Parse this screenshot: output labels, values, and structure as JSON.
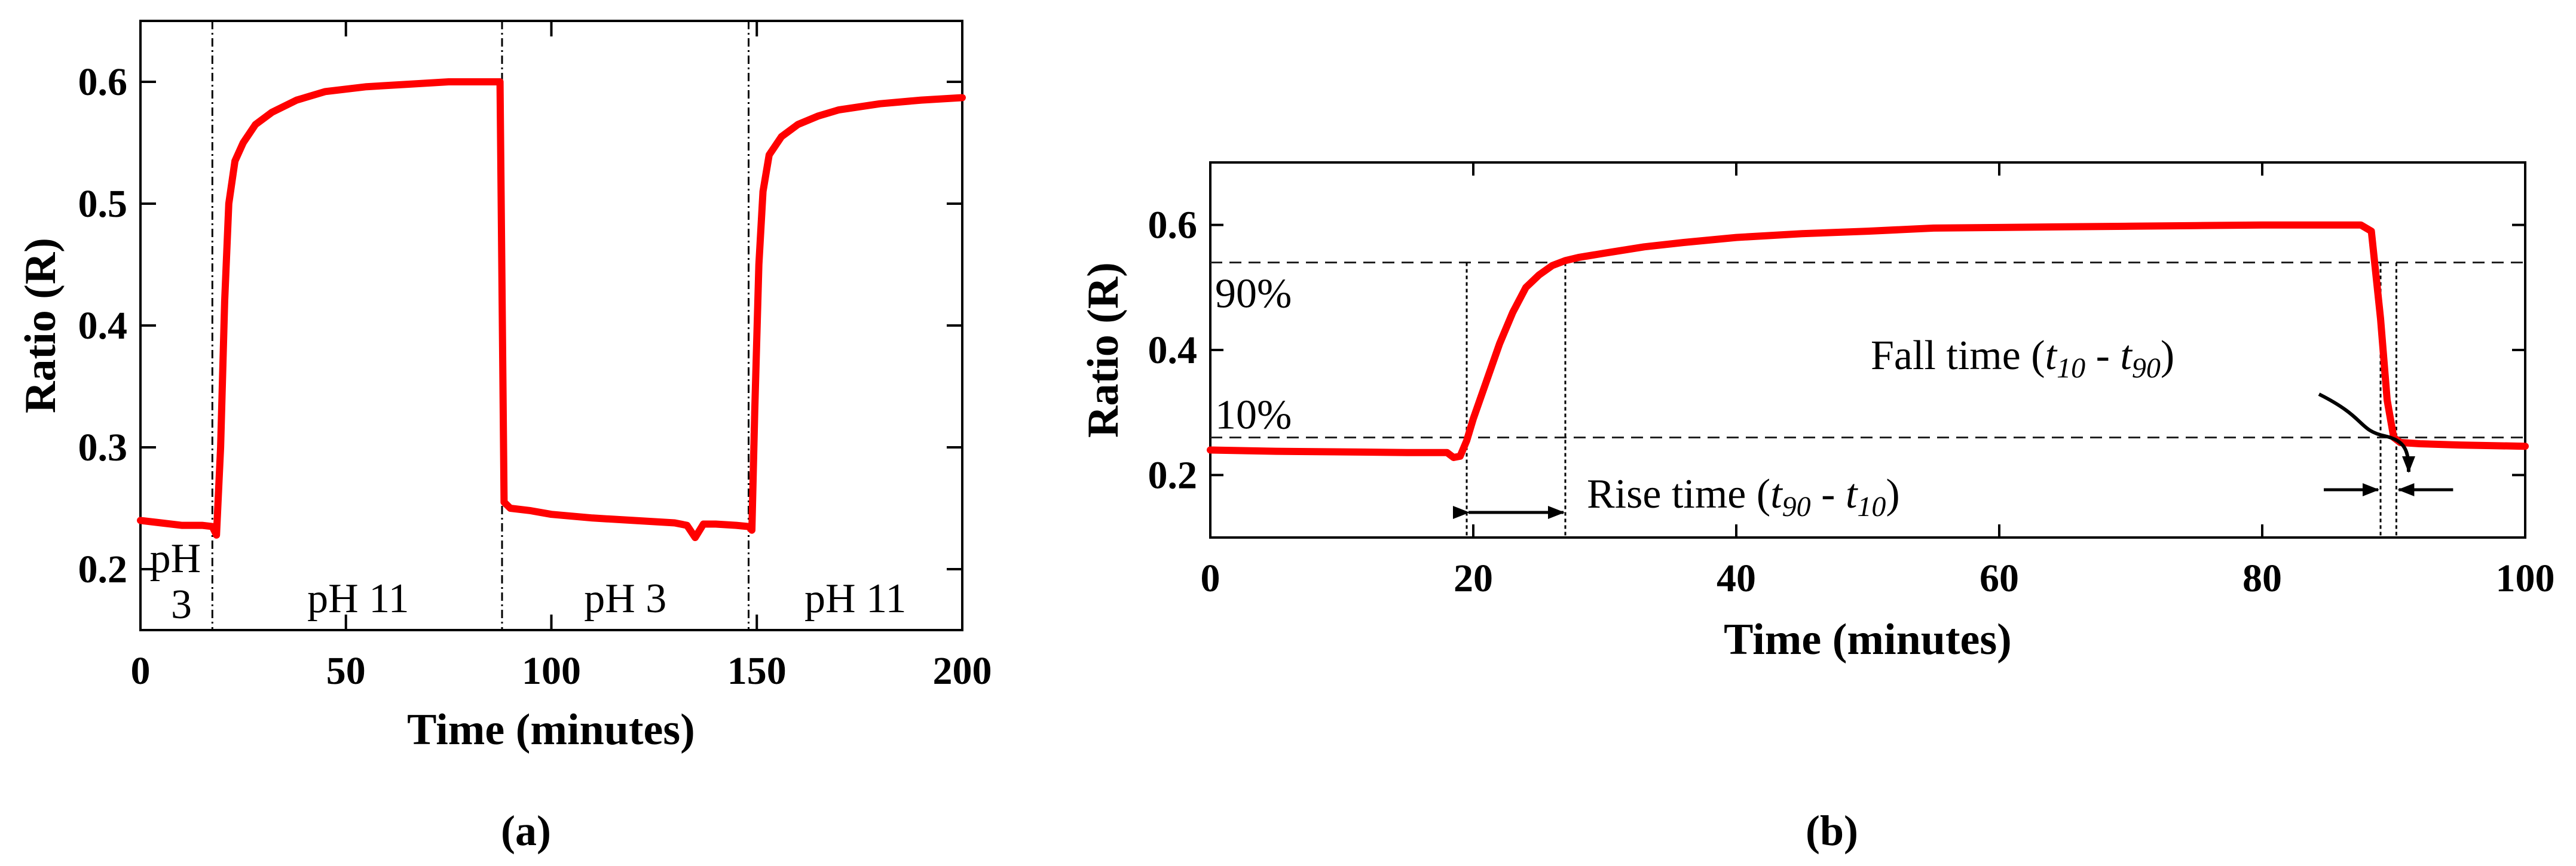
{
  "chart_data": [
    {
      "type": "line",
      "panel_label": "(a)",
      "xlabel": "Time (minutes)",
      "ylabel": "Ratio  (R)",
      "xlim": [
        0,
        200
      ],
      "ylim": [
        0.15,
        0.65
      ],
      "xticks": [
        0,
        50,
        100,
        150,
        200
      ],
      "yticks": [
        0.2,
        0.3,
        0.4,
        0.5,
        0.6
      ],
      "x_tick_labels": [
        "0",
        "50",
        "100",
        "150",
        "200"
      ],
      "y_tick_labels": [
        "0.2",
        "0.3",
        "0.4",
        "0.5",
        "0.6"
      ],
      "series": [
        {
          "name": "Ratio",
          "color": "#ff0000",
          "x": [
            0,
            5,
            10,
            15,
            17.5,
            18.5,
            19.5,
            20.5,
            21.5,
            23,
            25,
            28,
            32,
            38,
            45,
            55,
            65,
            75,
            85,
            87.5,
            88.5,
            90,
            95,
            100,
            110,
            120,
            130,
            133,
            135,
            137,
            140,
            145,
            148,
            148.8,
            149.5,
            150.5,
            151.5,
            153,
            156,
            160,
            165,
            170,
            180,
            190,
            200
          ],
          "y": [
            0.24,
            0.238,
            0.236,
            0.236,
            0.235,
            0.228,
            0.3,
            0.42,
            0.5,
            0.535,
            0.55,
            0.565,
            0.575,
            0.585,
            0.592,
            0.596,
            0.598,
            0.6,
            0.6,
            0.6,
            0.255,
            0.25,
            0.248,
            0.245,
            0.242,
            0.24,
            0.238,
            0.236,
            0.226,
            0.237,
            0.237,
            0.236,
            0.235,
            0.232,
            0.33,
            0.45,
            0.51,
            0.54,
            0.555,
            0.565,
            0.572,
            0.577,
            0.582,
            0.585,
            0.587
          ]
        }
      ],
      "phase_lines_x": [
        17.5,
        88,
        148
      ],
      "phase_labels": [
        {
          "lines": [
            "pH",
            "3"
          ],
          "x": 8.5
        },
        {
          "lines": [
            "pH 11"
          ],
          "x": 53
        },
        {
          "lines": [
            "pH 3"
          ],
          "x": 118
        },
        {
          "lines": [
            "pH 11"
          ],
          "x": 174
        }
      ]
    },
    {
      "type": "line",
      "panel_label": "(b)",
      "xlabel": "Time (minutes)",
      "ylabel": "Ratio (R)",
      "xlim": [
        0,
        100
      ],
      "ylim": [
        0.1,
        0.7
      ],
      "xticks": [
        0,
        20,
        40,
        60,
        80,
        100
      ],
      "yticks": [
        0.2,
        0.4,
        0.6
      ],
      "x_tick_labels": [
        "0",
        "20",
        "40",
        "60",
        "80",
        "100"
      ],
      "y_tick_labels": [
        "0.2",
        "0.4",
        "0.6"
      ],
      "series": [
        {
          "name": "Ratio",
          "color": "#ff0000",
          "x": [
            0,
            5,
            10,
            15,
            18,
            18.5,
            19,
            19.5,
            20,
            21,
            22,
            23,
            24,
            25,
            26,
            27,
            28,
            30,
            33,
            36,
            40,
            45,
            50,
            55,
            60,
            65,
            70,
            75,
            80,
            85,
            87.5,
            88.3,
            89,
            89.5,
            90,
            90.5,
            92,
            95,
            100
          ],
          "y": [
            0.24,
            0.238,
            0.237,
            0.236,
            0.236,
            0.228,
            0.23,
            0.255,
            0.29,
            0.35,
            0.41,
            0.46,
            0.5,
            0.52,
            0.535,
            0.543,
            0.548,
            0.555,
            0.565,
            0.572,
            0.58,
            0.586,
            0.59,
            0.595,
            0.596,
            0.597,
            0.598,
            0.599,
            0.6,
            0.6,
            0.6,
            0.59,
            0.45,
            0.32,
            0.26,
            0.252,
            0.25,
            0.248,
            0.246
          ]
        }
      ],
      "reference_lines": [
        {
          "label": "90%",
          "y": 0.54
        },
        {
          "label": "10%",
          "y": 0.26
        }
      ],
      "rise_markers_x": [
        19.5,
        27
      ],
      "fall_markers_x": [
        89,
        90.2
      ],
      "rise_label": {
        "prefix": "Rise time (",
        "t1": "t",
        "s1": "90",
        "mid": " - ",
        "t2": "t",
        "s2": "10",
        "suffix": ")"
      },
      "fall_label": {
        "prefix": "Fall time (",
        "t1": "t",
        "s1": "10",
        "mid": " - ",
        "t2": "t",
        "s2": "90",
        "suffix": ")"
      }
    }
  ]
}
